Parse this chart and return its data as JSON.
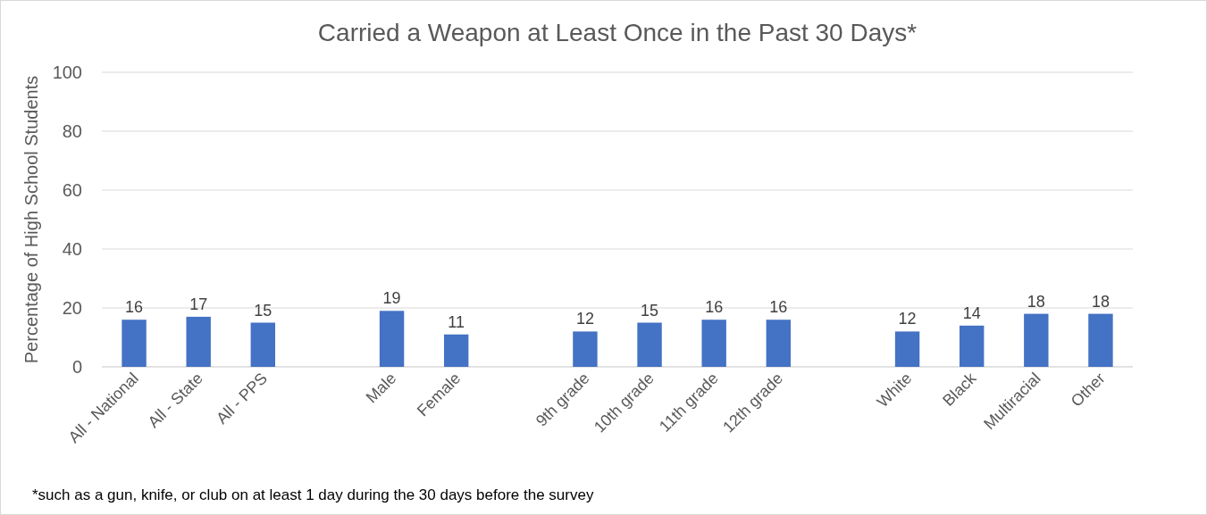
{
  "chart_data": {
    "type": "bar",
    "title": "Carried a Weapon at Least Once in the Past 30 Days*",
    "ylabel": "Percentage of High School Students",
    "categories": [
      "All - National",
      "All - State",
      "All - PPS",
      null,
      "Male",
      "Female",
      null,
      "9th grade",
      "10th grade",
      "11th grade",
      "12th grade",
      null,
      "White",
      "Black",
      "Multiracial",
      "Other"
    ],
    "values": [
      16,
      17,
      15,
      null,
      19,
      11,
      null,
      12,
      15,
      16,
      16,
      null,
      12,
      14,
      18,
      18
    ],
    "color": "#4472c4",
    "ylim": [
      0,
      100
    ],
    "yticks": [
      0,
      20,
      40,
      60,
      80,
      100
    ],
    "grid": "y",
    "data_labels": true,
    "annotations": [
      "*such as a gun, knife, or club on at least 1 day during the 30 days before the survey"
    ]
  }
}
